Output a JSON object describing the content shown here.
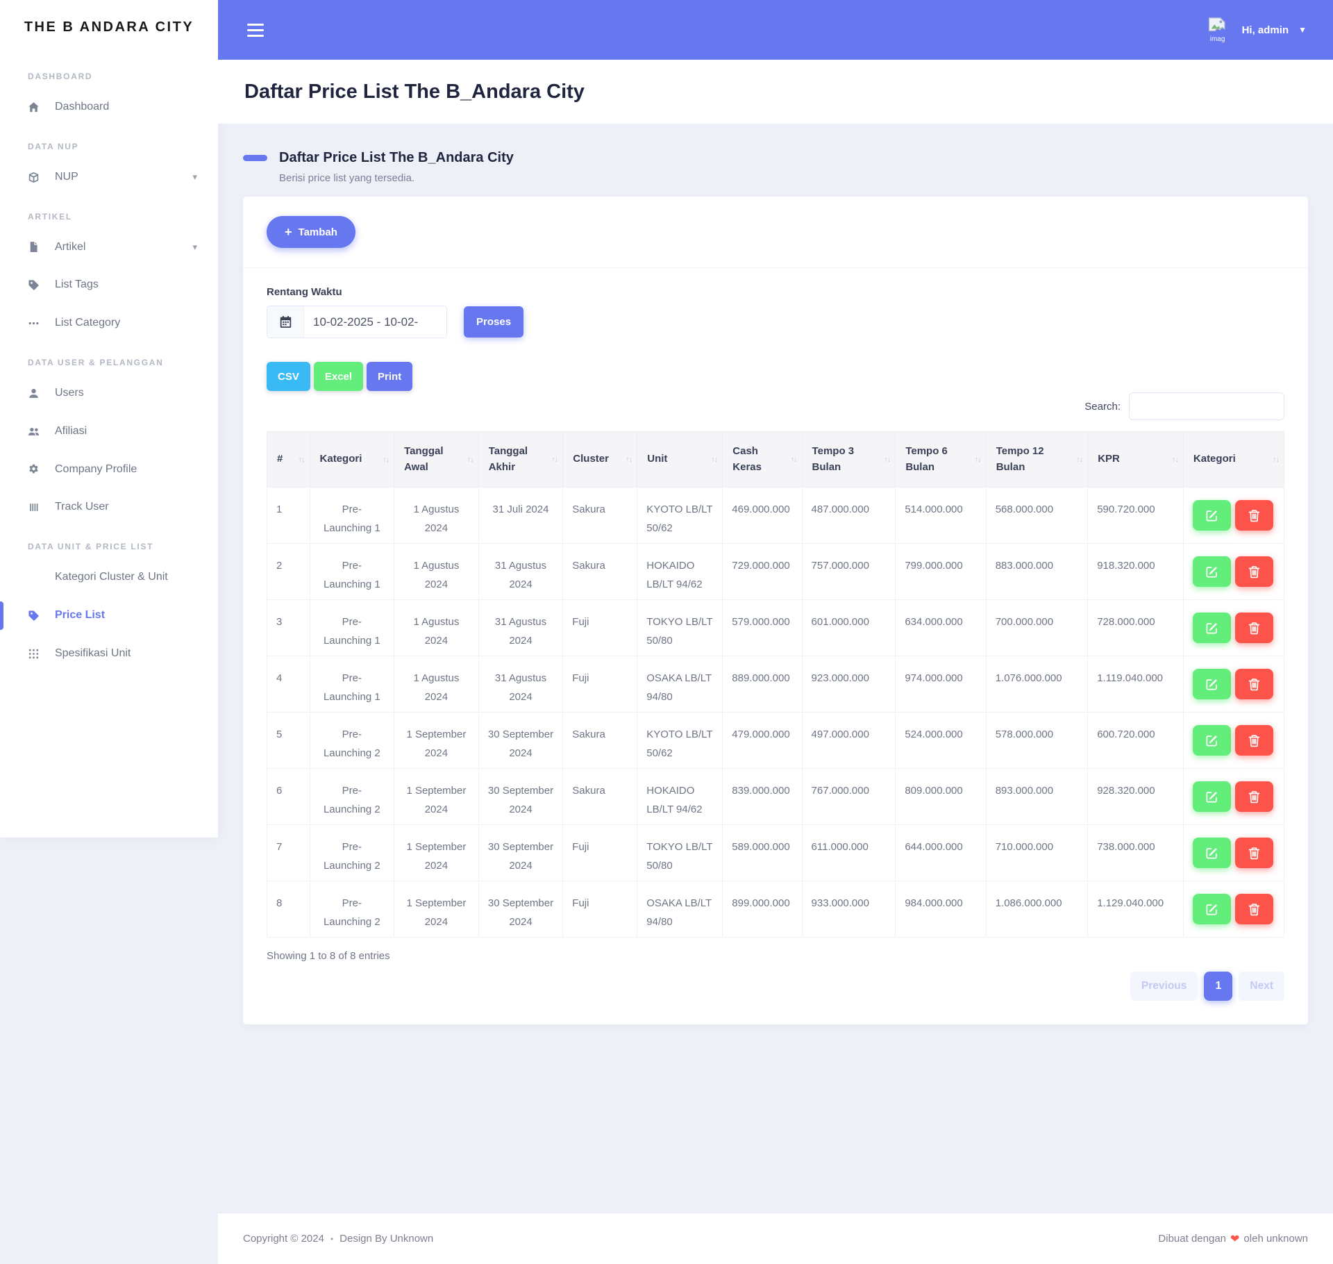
{
  "brand": "THE B ANDARA CITY",
  "navbar": {
    "greeting": "Hi, admin",
    "avatar_caption": "imag"
  },
  "sidebar": {
    "sections": [
      {
        "label": "DASHBOARD",
        "items": [
          {
            "label": "Dashboard",
            "icon": "home-icon"
          }
        ]
      },
      {
        "label": "DATA NUP",
        "items": [
          {
            "label": "NUP",
            "icon": "box-icon",
            "caret": true
          }
        ]
      },
      {
        "label": "ARTIKEL",
        "items": [
          {
            "label": "Artikel",
            "icon": "file-icon",
            "caret": true
          },
          {
            "label": "List Tags",
            "icon": "tag-icon"
          },
          {
            "label": "List Category",
            "icon": "ellipsis-icon"
          }
        ]
      },
      {
        "label": "DATA USER & PELANGGAN",
        "items": [
          {
            "label": "Users",
            "icon": "user-icon"
          },
          {
            "label": "Afiliasi",
            "icon": "users-icon"
          },
          {
            "label": "Company Profile",
            "icon": "gear-icon"
          },
          {
            "label": "Track User",
            "icon": "bars-icon"
          }
        ]
      },
      {
        "label": "DATA UNIT & PRICE LIST",
        "items": [
          {
            "label": "Kategori Cluster & Unit",
            "icon": null
          },
          {
            "label": "Price List",
            "icon": "tag-icon",
            "active": true
          },
          {
            "label": "Spesifikasi Unit",
            "icon": "grid-icon"
          }
        ]
      }
    ]
  },
  "page": {
    "title": "Daftar Price List The B_Andara City",
    "section_title": "Daftar Price List The B_Andara City",
    "section_subtitle": "Berisi price list yang tersedia."
  },
  "toolbar": {
    "add_button": "Tambah",
    "date_label": "Rentang Waktu",
    "date_value": "10-02-2025 - 10-02-",
    "process_button": "Proses",
    "export_buttons": [
      {
        "label": "CSV",
        "color": "#3abaf4"
      },
      {
        "label": "Excel",
        "color": "#63ed7a"
      },
      {
        "label": "Print",
        "color": "#6777ef"
      }
    ],
    "search_label": "Search:",
    "search_value": ""
  },
  "table": {
    "headers": [
      "#",
      "Kategori",
      "Tanggal Awal",
      "Tanggal Akhir",
      "Cluster",
      "Unit",
      "Cash Keras",
      "Tempo 3 Bulan",
      "Tempo 6 Bulan",
      "Tempo 12 Bulan",
      "KPR",
      "Kategori"
    ],
    "rows": [
      {
        "no": "1",
        "kategori": "Pre-Launching 1",
        "tanggal_awal": "1 Agustus 2024",
        "tanggal_akhir": "31 Juli 2024",
        "cluster": "Sakura",
        "unit": "KYOTO LB/LT 50/62",
        "cash_keras": "469.000.000",
        "tempo_3": "487.000.000",
        "tempo_6": "514.000.000",
        "tempo_12": "568.000.000",
        "kpr": "590.720.000"
      },
      {
        "no": "2",
        "kategori": "Pre-Launching 1",
        "tanggal_awal": "1 Agustus 2024",
        "tanggal_akhir": "31 Agustus 2024",
        "cluster": "Sakura",
        "unit": "HOKAIDO LB/LT 94/62",
        "cash_keras": "729.000.000",
        "tempo_3": "757.000.000",
        "tempo_6": "799.000.000",
        "tempo_12": "883.000.000",
        "kpr": "918.320.000"
      },
      {
        "no": "3",
        "kategori": "Pre-Launching 1",
        "tanggal_awal": "1 Agustus 2024",
        "tanggal_akhir": "31 Agustus 2024",
        "cluster": "Fuji",
        "unit": "TOKYO LB/LT 50/80",
        "cash_keras": "579.000.000",
        "tempo_3": "601.000.000",
        "tempo_6": "634.000.000",
        "tempo_12": "700.000.000",
        "kpr": "728.000.000"
      },
      {
        "no": "4",
        "kategori": "Pre-Launching 1",
        "tanggal_awal": "1 Agustus 2024",
        "tanggal_akhir": "31 Agustus 2024",
        "cluster": "Fuji",
        "unit": "OSAKA LB/LT 94/80",
        "cash_keras": "889.000.000",
        "tempo_3": "923.000.000",
        "tempo_6": "974.000.000",
        "tempo_12": "1.076.000.000",
        "kpr": "1.119.040.000"
      },
      {
        "no": "5",
        "kategori": "Pre-Launching 2",
        "tanggal_awal": "1 September 2024",
        "tanggal_akhir": "30 September 2024",
        "cluster": "Sakura",
        "unit": "KYOTO LB/LT 50/62",
        "cash_keras": "479.000.000",
        "tempo_3": "497.000.000",
        "tempo_6": "524.000.000",
        "tempo_12": "578.000.000",
        "kpr": "600.720.000"
      },
      {
        "no": "6",
        "kategori": "Pre-Launching 2",
        "tanggal_awal": "1 September 2024",
        "tanggal_akhir": "30 September 2024",
        "cluster": "Sakura",
        "unit": "HOKAIDO LB/LT 94/62",
        "cash_keras": "839.000.000",
        "tempo_3": "767.000.000",
        "tempo_6": "809.000.000",
        "tempo_12": "893.000.000",
        "kpr": "928.320.000"
      },
      {
        "no": "7",
        "kategori": "Pre-Launching 2",
        "tanggal_awal": "1 September 2024",
        "tanggal_akhir": "30 September 2024",
        "cluster": "Fuji",
        "unit": "TOKYO LB/LT 50/80",
        "cash_keras": "589.000.000",
        "tempo_3": "611.000.000",
        "tempo_6": "644.000.000",
        "tempo_12": "710.000.000",
        "kpr": "738.000.000"
      },
      {
        "no": "8",
        "kategori": "Pre-Launching 2",
        "tanggal_awal": "1 September 2024",
        "tanggal_akhir": "30 September 2024",
        "cluster": "Fuji",
        "unit": "OSAKA LB/LT 94/80",
        "cash_keras": "899.000.000",
        "tempo_3": "933.000.000",
        "tempo_6": "984.000.000",
        "tempo_12": "1.086.000.000",
        "kpr": "1.129.040.000"
      }
    ],
    "info": "Showing 1 to 8 of 8 entries",
    "pagination": {
      "previous": "Previous",
      "page": "1",
      "next": "Next"
    }
  },
  "footer": {
    "left": "Copyright © 2024",
    "separator": "•",
    "left_author": "Design By Unknown",
    "right_prefix": "Dibuat dengan",
    "right_heart": "❤",
    "right_suffix": "oleh unknown"
  },
  "colors": {
    "primary": "#6777ef",
    "info": "#3abaf4",
    "success": "#63ed7a",
    "danger": "#fc544b"
  }
}
